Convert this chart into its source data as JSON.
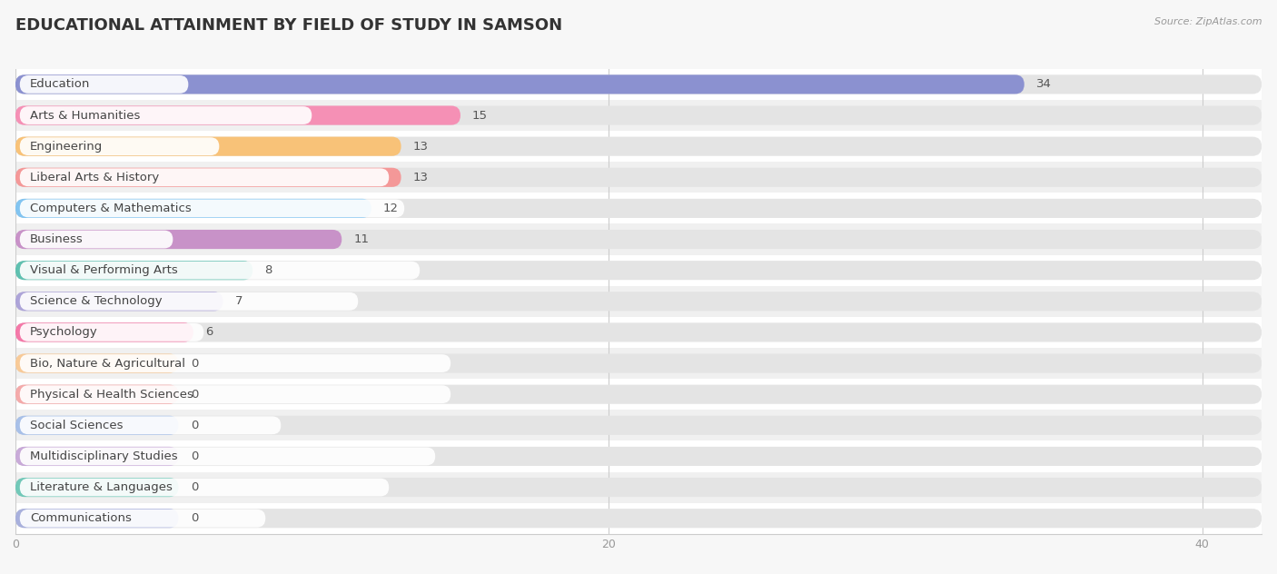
{
  "title": "EDUCATIONAL ATTAINMENT BY FIELD OF STUDY IN SAMSON",
  "source": "Source: ZipAtlas.com",
  "categories": [
    "Education",
    "Arts & Humanities",
    "Engineering",
    "Liberal Arts & History",
    "Computers & Mathematics",
    "Business",
    "Visual & Performing Arts",
    "Science & Technology",
    "Psychology",
    "Bio, Nature & Agricultural",
    "Physical & Health Sciences",
    "Social Sciences",
    "Multidisciplinary Studies",
    "Literature & Languages",
    "Communications"
  ],
  "values": [
    34,
    15,
    13,
    13,
    12,
    11,
    8,
    7,
    6,
    0,
    0,
    0,
    0,
    0,
    0
  ],
  "bar_colors": [
    "#8B91D0",
    "#F590B5",
    "#F8C278",
    "#F49898",
    "#82C4F0",
    "#C892C8",
    "#60C0B0",
    "#ADA4D8",
    "#F478A8",
    "#F8CA98",
    "#F4AAAA",
    "#A8C0E8",
    "#C8AAD8",
    "#72C8B8",
    "#A8B0DC"
  ],
  "background_color": "#f7f7f7",
  "row_colors": [
    "#ffffff",
    "#f0f0f0"
  ],
  "bar_background_color": "#e4e4e4",
  "label_bg_color": "#ffffff",
  "xlim_max": 42,
  "xticks": [
    0,
    20,
    40
  ],
  "title_fontsize": 13,
  "label_fontsize": 9.5,
  "value_fontsize": 9.5,
  "zero_bar_width": 5.5
}
